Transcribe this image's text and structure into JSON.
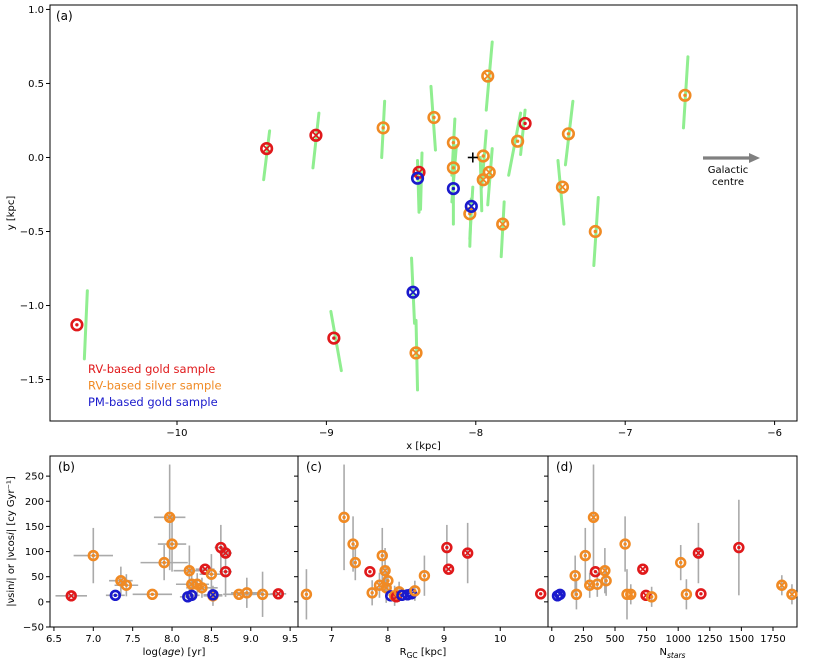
{
  "colors": {
    "gold": "#e0191b",
    "silver": "#f08a24",
    "pm": "#1a1acc",
    "trail": "#90ee90",
    "errbar": "#aaaaaa",
    "arrow": "#808080"
  },
  "chart_data": [
    {
      "type": "scatter",
      "panel_label": "(a)",
      "xlabel": "x [kpc]",
      "ylabel": "y [kpc]",
      "xlim": [
        -10.85,
        -5.85
      ],
      "ylim": [
        -1.78,
        1.03
      ],
      "xticks": [
        -10,
        -9,
        -8,
        -7,
        -6
      ],
      "xtick_labels": [
        "−10",
        "−9",
        "−8",
        "−7",
        "−6"
      ],
      "yticks": [
        1.0,
        0.5,
        0.0,
        -0.5,
        -1.0,
        -1.5
      ],
      "ytick_labels": [
        "1.0",
        "0.5",
        "0.0",
        "−0.5",
        "−1.0",
        "−1.5"
      ],
      "sun": {
        "x": -8.0,
        "y": 0.0
      },
      "annotation": {
        "lines": [
          "Galactic",
          "centre"
        ]
      },
      "legend": [
        {
          "label": "RV-based gold sample",
          "color_key": "gold"
        },
        {
          "label": "RV-based silver sample",
          "color_key": "silver"
        },
        {
          "label": "PM-based gold sample",
          "color_key": "pm"
        }
      ],
      "points": [
        {
          "x": -10.67,
          "y": -1.13,
          "group": "gold",
          "sym": "dot",
          "tx": -10.6,
          "ty": -0.9,
          "bx": -10.62,
          "by": -1.36
        },
        {
          "x": -9.4,
          "y": 0.06,
          "group": "gold",
          "sym": "cross",
          "tx": -9.38,
          "ty": 0.18,
          "bx": -9.42,
          "by": -0.15
        },
        {
          "x": -9.07,
          "y": 0.15,
          "group": "gold",
          "sym": "cross",
          "tx": -9.05,
          "ty": 0.3,
          "bx": -9.09,
          "by": -0.07
        },
        {
          "x": -8.95,
          "y": -1.22,
          "group": "gold",
          "sym": "dot",
          "tx": -8.97,
          "ty": -1.04,
          "bx": -8.9,
          "by": -1.44
        },
        {
          "x": -8.38,
          "y": -0.1,
          "group": "gold",
          "sym": "cross",
          "tx": -8.36,
          "ty": 0.03,
          "bx": -8.37,
          "by": -0.35
        },
        {
          "x": -7.67,
          "y": 0.23,
          "group": "gold",
          "sym": "dot",
          "tx": -7.67,
          "ty": 0.32,
          "bx": -7.7,
          "by": 0.02
        },
        {
          "x": -8.62,
          "y": 0.2,
          "group": "silver",
          "sym": "dot",
          "tx": -8.61,
          "ty": 0.38,
          "bx": -8.63,
          "by": 0.0
        },
        {
          "x": -8.28,
          "y": 0.27,
          "group": "silver",
          "sym": "dot",
          "tx": -8.3,
          "ty": 0.48,
          "bx": -8.27,
          "by": 0.05
        },
        {
          "x": -8.15,
          "y": 0.1,
          "group": "silver",
          "sym": "dot",
          "tx": -8.14,
          "ty": 0.26,
          "bx": -8.16,
          "by": -0.12
        },
        {
          "x": -8.15,
          "y": -0.07,
          "group": "silver",
          "sym": "dot",
          "tx": -8.13,
          "ty": 0.08,
          "bx": -8.16,
          "by": -0.3
        },
        {
          "x": -7.92,
          "y": 0.55,
          "group": "silver",
          "sym": "cross",
          "tx": -7.89,
          "ty": 0.78,
          "bx": -7.93,
          "by": 0.32
        },
        {
          "x": -7.95,
          "y": 0.01,
          "group": "silver",
          "sym": "dot",
          "tx": -7.93,
          "ty": 0.18,
          "bx": -7.96,
          "by": -0.2
        },
        {
          "x": -7.91,
          "y": -0.1,
          "group": "silver",
          "sym": "cross",
          "tx": -7.89,
          "ty": 0.06,
          "bx": -7.92,
          "by": -0.32
        },
        {
          "x": -7.95,
          "y": -0.15,
          "group": "silver",
          "sym": "cross",
          "tx": -7.97,
          "ty": 0.0,
          "bx": -7.96,
          "by": -0.36
        },
        {
          "x": -8.04,
          "y": -0.38,
          "group": "silver",
          "sym": "dot",
          "tx": -8.03,
          "ty": -0.28,
          "bx": -8.04,
          "by": -0.6
        },
        {
          "x": -7.82,
          "y": -0.45,
          "group": "silver",
          "sym": "cross",
          "tx": -7.81,
          "ty": -0.3,
          "bx": -7.83,
          "by": -0.67
        },
        {
          "x": -7.72,
          "y": 0.11,
          "group": "silver",
          "sym": "dot",
          "tx": -7.7,
          "ty": 0.3,
          "bx": -7.78,
          "by": -0.12
        },
        {
          "x": -7.38,
          "y": 0.16,
          "group": "silver",
          "sym": "dot",
          "tx": -7.35,
          "ty": 0.38,
          "bx": -7.4,
          "by": -0.05
        },
        {
          "x": -7.42,
          "y": -0.2,
          "group": "silver",
          "sym": "cross",
          "tx": -7.45,
          "ty": -0.02,
          "bx": -7.41,
          "by": -0.45
        },
        {
          "x": -7.2,
          "y": -0.5,
          "group": "silver",
          "sym": "dot",
          "tx": -7.18,
          "ty": -0.27,
          "bx": -7.21,
          "by": -0.73
        },
        {
          "x": -6.6,
          "y": 0.42,
          "group": "silver",
          "sym": "dot",
          "tx": -6.58,
          "ty": 0.68,
          "bx": -6.61,
          "by": 0.2
        },
        {
          "x": -8.4,
          "y": -1.32,
          "group": "silver",
          "sym": "cross",
          "tx": -8.4,
          "ty": -1.1,
          "bx": -8.39,
          "by": -1.57
        },
        {
          "x": -8.39,
          "y": -0.14,
          "group": "pm",
          "sym": "dot",
          "tx": -8.39,
          "ty": -0.02,
          "bx": -8.38,
          "by": -0.37
        },
        {
          "x": -8.15,
          "y": -0.21,
          "group": "pm",
          "sym": "dot",
          "tx": -8.15,
          "ty": -0.07,
          "bx": -8.15,
          "by": -0.45
        },
        {
          "x": -8.03,
          "y": -0.33,
          "group": "pm",
          "sym": "cross",
          "tx": -8.02,
          "ty": -0.2,
          "bx": -8.04,
          "by": -0.55
        },
        {
          "x": -8.42,
          "y": -0.91,
          "group": "pm",
          "sym": "cross",
          "tx": -8.43,
          "ty": -0.68,
          "bx": -8.41,
          "by": -1.12
        }
      ]
    },
    {
      "type": "scatter",
      "panel_label": "(b)",
      "xlabel": "log(",
      "xlabel_italic": "age",
      "xlabel_tail": ") [yr]",
      "ylabel": "|νsin",
      "ylabel_i1": "i",
      "ylabel_mid": "| or |νcos",
      "ylabel_i2": "i",
      "ylabel_tail": "|  [cy Gyr⁻¹]",
      "xlim": [
        6.45,
        9.6
      ],
      "ylim": [
        -50,
        290
      ],
      "xticks": [
        6.5,
        7.0,
        7.5,
        8.0,
        8.5,
        9.0,
        9.5
      ],
      "xtick_labels": [
        "6.5",
        "7.0",
        "7.5",
        "8.0",
        "8.5",
        "9.0",
        "9.5"
      ],
      "yticks": [
        -50,
        0,
        50,
        100,
        150,
        200,
        250
      ],
      "ytick_labels": [
        "−50",
        "0",
        "50",
        "100",
        "150",
        "200",
        "250"
      ],
      "points": [
        {
          "x": 6.72,
          "y": 12,
          "group": "gold",
          "sym": "cross",
          "xe": 0.2,
          "ye": 0
        },
        {
          "x": 7.0,
          "y": 92,
          "group": "silver",
          "sym": "dot",
          "xe": 0.25,
          "ye": 55
        },
        {
          "x": 7.35,
          "y": 42,
          "group": "silver",
          "sym": "cross",
          "xe": 0.15,
          "ye": 28
        },
        {
          "x": 7.42,
          "y": 33,
          "group": "silver",
          "sym": "dot",
          "xe": 0.15,
          "ye": 22
        },
        {
          "x": 7.28,
          "y": 13,
          "group": "pm",
          "sym": "dot",
          "xe": 0.12,
          "ye": 0
        },
        {
          "x": 7.75,
          "y": 15,
          "group": "silver",
          "sym": "dot",
          "xe": 0.25,
          "ye": 0
        },
        {
          "x": 7.9,
          "y": 78,
          "group": "silver",
          "sym": "dot",
          "xe": 0.3,
          "ye": 35
        },
        {
          "x": 7.97,
          "y": 168,
          "group": "silver",
          "sym": "cross",
          "xe": 0.2,
          "ye": 105
        },
        {
          "x": 8.0,
          "y": 115,
          "group": "silver",
          "sym": "dot",
          "xe": 0.18,
          "ye": 55
        },
        {
          "x": 8.22,
          "y": 62,
          "group": "silver",
          "sym": "cross",
          "xe": 0.2,
          "ye": 50
        },
        {
          "x": 8.25,
          "y": 35,
          "group": "silver",
          "sym": "cross",
          "xe": 0.2,
          "ye": 30
        },
        {
          "x": 8.32,
          "y": 35,
          "group": "silver",
          "sym": "dot",
          "xe": 0.15,
          "ye": 22
        },
        {
          "x": 8.38,
          "y": 28,
          "group": "silver",
          "sym": "cross",
          "xe": 0.2,
          "ye": 20
        },
        {
          "x": 8.42,
          "y": 65,
          "group": "gold",
          "sym": "cross",
          "xe": 0.12,
          "ye": 0
        },
        {
          "x": 8.5,
          "y": 55,
          "group": "silver",
          "sym": "dot",
          "xe": 0.15,
          "ye": 40
        },
        {
          "x": 8.52,
          "y": 12,
          "group": "silver",
          "sym": "dot",
          "xe": 0.12,
          "ye": 20
        },
        {
          "x": 8.62,
          "y": 108,
          "group": "gold",
          "sym": "dot",
          "xe": 0.08,
          "ye": 45
        },
        {
          "x": 8.68,
          "y": 97,
          "group": "gold",
          "sym": "cross",
          "xe": 0.08,
          "ye": 0
        },
        {
          "x": 8.68,
          "y": 60,
          "group": "gold",
          "sym": "dot",
          "xe": 0.08,
          "ye": 50
        },
        {
          "x": 8.85,
          "y": 15,
          "group": "silver",
          "sym": "cross",
          "xe": 0.2,
          "ye": 0
        },
        {
          "x": 8.95,
          "y": 18,
          "group": "silver",
          "sym": "dot",
          "xe": 0.2,
          "ye": 30
        },
        {
          "x": 9.15,
          "y": 15,
          "group": "silver",
          "sym": "dot",
          "xe": 0.2,
          "ye": 45
        },
        {
          "x": 9.35,
          "y": 16,
          "group": "gold",
          "sym": "cross",
          "xe": 0.1,
          "ye": 0
        },
        {
          "x": 8.2,
          "y": 10,
          "group": "pm",
          "sym": "dot",
          "xe": 0.1,
          "ye": 0
        },
        {
          "x": 8.25,
          "y": 13,
          "group": "pm",
          "sym": "dot",
          "xe": 0.1,
          "ye": 0
        },
        {
          "x": 8.52,
          "y": 14,
          "group": "pm",
          "sym": "cross",
          "xe": 0.12,
          "ye": 0
        }
      ]
    },
    {
      "type": "scatter",
      "panel_label": "(c)",
      "xlabel": "R",
      "xlabel_sub": "GC",
      "xlabel_tail": " [kpc]",
      "xlim": [
        6.4,
        10.85
      ],
      "ylim": [
        -50,
        290
      ],
      "xticks": [
        7,
        8,
        9,
        10
      ],
      "xtick_labels": [
        "7",
        "8",
        "9",
        "10"
      ],
      "points": [
        {
          "x": 6.55,
          "y": 15,
          "group": "silver",
          "sym": "dot",
          "ye": 50
        },
        {
          "x": 7.22,
          "y": 168,
          "group": "silver",
          "sym": "dot",
          "ye": 105
        },
        {
          "x": 7.38,
          "y": 115,
          "group": "silver",
          "sym": "dot",
          "ye": 55
        },
        {
          "x": 7.42,
          "y": 78,
          "group": "silver",
          "sym": "dot",
          "ye": 35
        },
        {
          "x": 7.68,
          "y": 60,
          "group": "gold",
          "sym": "dot",
          "ye": 0
        },
        {
          "x": 7.72,
          "y": 18,
          "group": "silver",
          "sym": "dot",
          "ye": 25
        },
        {
          "x": 7.85,
          "y": 33,
          "group": "silver",
          "sym": "cross",
          "ye": 25
        },
        {
          "x": 7.9,
          "y": 92,
          "group": "silver",
          "sym": "dot",
          "ye": 55
        },
        {
          "x": 7.95,
          "y": 62,
          "group": "silver",
          "sym": "cross",
          "ye": 45
        },
        {
          "x": 7.97,
          "y": 28,
          "group": "silver",
          "sym": "cross",
          "ye": 30
        },
        {
          "x": 8.0,
          "y": 42,
          "group": "silver",
          "sym": "dot",
          "ye": 30
        },
        {
          "x": 8.05,
          "y": 12,
          "group": "pm",
          "sym": "dot",
          "ye": 0
        },
        {
          "x": 8.12,
          "y": 12,
          "group": "silver",
          "sym": "dot",
          "ye": 20
        },
        {
          "x": 8.15,
          "y": 10,
          "group": "gold",
          "sym": "cross",
          "ye": 0
        },
        {
          "x": 8.2,
          "y": 20,
          "group": "silver",
          "sym": "cross",
          "ye": 20
        },
        {
          "x": 8.25,
          "y": 13,
          "group": "pm",
          "sym": "dot",
          "ye": 0
        },
        {
          "x": 8.35,
          "y": 14,
          "group": "pm",
          "sym": "cross",
          "ye": 0
        },
        {
          "x": 8.42,
          "y": 16,
          "group": "pm",
          "sym": "cross",
          "ye": 0
        },
        {
          "x": 8.48,
          "y": 22,
          "group": "silver",
          "sym": "dot",
          "ye": 20
        },
        {
          "x": 8.65,
          "y": 52,
          "group": "silver",
          "sym": "dot",
          "ye": 40
        },
        {
          "x": 9.05,
          "y": 108,
          "group": "gold",
          "sym": "dot",
          "ye": 45
        },
        {
          "x": 9.08,
          "y": 65,
          "group": "gold",
          "sym": "cross",
          "ye": 0
        },
        {
          "x": 9.42,
          "y": 97,
          "group": "gold",
          "sym": "cross",
          "ye": 60
        },
        {
          "x": 10.72,
          "y": 16,
          "group": "gold",
          "sym": "dot",
          "ye": 0
        }
      ]
    },
    {
      "type": "scatter",
      "panel_label": "(d)",
      "xlabel": "N",
      "xlabel_sub": "stars",
      "xlim": [
        -30,
        1940
      ],
      "ylim": [
        -50,
        290
      ],
      "xticks": [
        0,
        250,
        500,
        750,
        1000,
        1250,
        1500,
        1750
      ],
      "xtick_labels": [
        "0",
        "250",
        "500",
        "750",
        "1000",
        "1250",
        "1500",
        "1750"
      ],
      "points": [
        {
          "x": 45,
          "y": 12,
          "group": "pm",
          "sym": "dot",
          "ye": 0
        },
        {
          "x": 65,
          "y": 15,
          "group": "pm",
          "sym": "cross",
          "ye": 0
        },
        {
          "x": 185,
          "y": 52,
          "group": "silver",
          "sym": "dot",
          "ye": 40
        },
        {
          "x": 195,
          "y": 15,
          "group": "silver",
          "sym": "dot",
          "ye": 30
        },
        {
          "x": 265,
          "y": 92,
          "group": "silver",
          "sym": "dot",
          "ye": 55
        },
        {
          "x": 300,
          "y": 33,
          "group": "silver",
          "sym": "cross",
          "ye": 25
        },
        {
          "x": 330,
          "y": 168,
          "group": "silver",
          "sym": "cross",
          "ye": 105
        },
        {
          "x": 345,
          "y": 60,
          "group": "gold",
          "sym": "dot",
          "ye": 0
        },
        {
          "x": 360,
          "y": 35,
          "group": "silver",
          "sym": "dot",
          "ye": 25
        },
        {
          "x": 420,
          "y": 62,
          "group": "silver",
          "sym": "cross",
          "ye": 45
        },
        {
          "x": 430,
          "y": 42,
          "group": "silver",
          "sym": "dot",
          "ye": 30
        },
        {
          "x": 580,
          "y": 115,
          "group": "silver",
          "sym": "dot",
          "ye": 55
        },
        {
          "x": 595,
          "y": 15,
          "group": "silver",
          "sym": "dot",
          "ye": 50
        },
        {
          "x": 625,
          "y": 15,
          "group": "silver",
          "sym": "cross",
          "ye": 20
        },
        {
          "x": 720,
          "y": 65,
          "group": "gold",
          "sym": "cross",
          "ye": 0
        },
        {
          "x": 745,
          "y": 13,
          "group": "gold",
          "sym": "cross",
          "ye": 0
        },
        {
          "x": 790,
          "y": 10,
          "group": "silver",
          "sym": "dot",
          "ye": 20
        },
        {
          "x": 1020,
          "y": 78,
          "group": "silver",
          "sym": "dot",
          "ye": 35
        },
        {
          "x": 1065,
          "y": 15,
          "group": "silver",
          "sym": "dot",
          "ye": 30
        },
        {
          "x": 1160,
          "y": 97,
          "group": "gold",
          "sym": "cross",
          "ye": 60
        },
        {
          "x": 1180,
          "y": 16,
          "group": "gold",
          "sym": "dot",
          "ye": 0
        },
        {
          "x": 1480,
          "y": 108,
          "group": "gold",
          "sym": "dot",
          "ye": 95
        },
        {
          "x": 1820,
          "y": 33,
          "group": "silver",
          "sym": "cross",
          "ye": 20
        },
        {
          "x": 1900,
          "y": 15,
          "group": "silver",
          "sym": "cross",
          "ye": 20
        }
      ]
    }
  ]
}
